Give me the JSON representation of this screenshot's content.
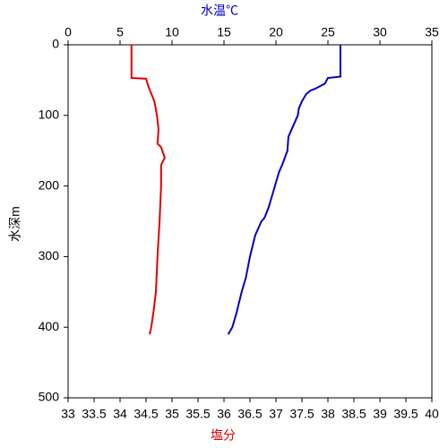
{
  "chart_data": {
    "type": "line",
    "xlabel": "塩分",
    "x2label": "水温℃",
    "ylabel": "水深m",
    "xlim": [
      33,
      40
    ],
    "xticks": [
      33,
      33.5,
      34,
      34.5,
      35,
      35.5,
      36,
      36.5,
      37,
      37.5,
      38,
      38.5,
      39,
      39.5,
      40
    ],
    "x2lim": [
      0,
      35
    ],
    "x2ticks": [
      0,
      5,
      10,
      15,
      20,
      25,
      30,
      35
    ],
    "ylim": [
      0,
      500
    ],
    "yticks": [
      0,
      100,
      200,
      300,
      400,
      500
    ],
    "yinverted": true,
    "series": [
      {
        "color": "#e00000",
        "axis": "x",
        "x": [
          34.22,
          34.22,
          34.5,
          34.55,
          34.66,
          34.71,
          34.74,
          34.72,
          34.79,
          34.86,
          34.79,
          34.79,
          34.76,
          34.72,
          34.69,
          34.64,
          34.6,
          34.57
        ],
        "y": [
          0,
          47,
          48,
          60,
          80,
          100,
          120,
          140,
          145,
          160,
          170,
          200,
          250,
          300,
          350,
          380,
          400,
          410
        ]
      },
      {
        "color": "#0000c0",
        "axis": "x2",
        "x": [
          26.2,
          26.2,
          25,
          24.7,
          23.8,
          23.3,
          22.9,
          22.5,
          22.2,
          22.1,
          21.5,
          21.2,
          21.1,
          20.6,
          20.3,
          19.9,
          19.3,
          18.9,
          18.6,
          18,
          17.5,
          17.1,
          16.7,
          16.2,
          15.8,
          15.4
        ],
        "y": [
          0,
          45,
          47,
          55,
          62,
          65,
          70,
          80,
          90,
          100,
          120,
          130,
          150,
          170,
          180,
          200,
          230,
          245,
          250,
          270,
          300,
          330,
          350,
          380,
          400,
          410
        ]
      }
    ]
  }
}
